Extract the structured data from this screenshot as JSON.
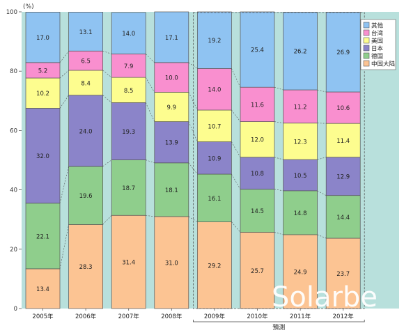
{
  "chart_data": {
    "type": "stacked-bar",
    "title": "",
    "ylabel": "",
    "xlabel": "",
    "y_unit": "(%)",
    "ylim": [
      0,
      100
    ],
    "y_ticks": [
      0,
      20,
      40,
      60,
      80,
      100
    ],
    "grid": false,
    "legend_position": "top-right",
    "categories": [
      "2005年",
      "2006年",
      "2007年",
      "2008年",
      "2009年",
      "2010年",
      "2011年",
      "2012年"
    ],
    "forecast_label": "預測",
    "forecast_from_index": 4,
    "series": [
      {
        "name": "中国大陆",
        "color": "#fcc493",
        "values": [
          13.4,
          28.3,
          31.4,
          31.0,
          29.2,
          25.7,
          24.9,
          23.7
        ]
      },
      {
        "name": "德国",
        "color": "#8fce8c",
        "values": [
          22.1,
          19.6,
          18.7,
          18.1,
          16.1,
          14.5,
          14.8,
          14.4
        ]
      },
      {
        "name": "日本",
        "color": "#8b84c9",
        "values": [
          32.0,
          24.0,
          19.3,
          13.9,
          10.9,
          10.8,
          10.5,
          12.9
        ]
      },
      {
        "name": "美国",
        "color": "#fdfd8f",
        "values": [
          10.2,
          8.4,
          8.5,
          9.9,
          10.7,
          12.0,
          12.3,
          11.4
        ]
      },
      {
        "name": "台湾",
        "color": "#f98fcf",
        "values": [
          5.2,
          6.5,
          7.9,
          10.0,
          14.0,
          11.6,
          11.2,
          10.6
        ]
      },
      {
        "name": "其他",
        "color": "#8fc3f2",
        "values": [
          17.0,
          13.1,
          14.0,
          17.1,
          19.2,
          25.4,
          26.2,
          26.9
        ]
      }
    ]
  },
  "legend_order": [
    "其他",
    "台湾",
    "美国",
    "日本",
    "德国",
    "中国大陆"
  ],
  "watermark": "Solarbe",
  "colors": {
    "plot_background": "#b8e0dc",
    "outer_background": "#ffffff",
    "bar_stroke": "#555555",
    "forecast_stroke": "#555555"
  }
}
